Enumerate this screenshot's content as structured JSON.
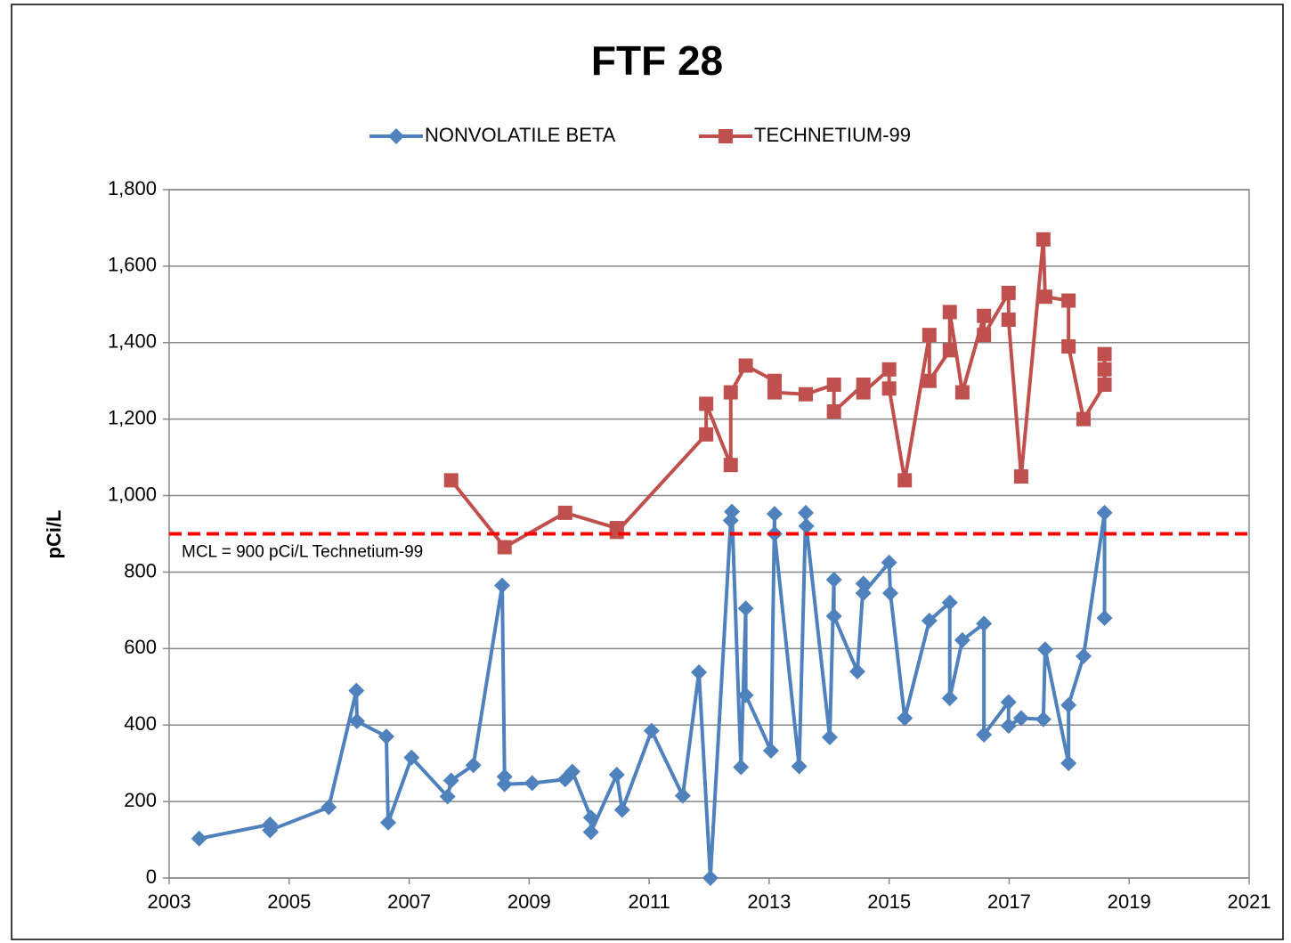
{
  "chart_data": {
    "type": "line",
    "title": "FTF 28",
    "ylabel": "pCi/L",
    "xlim": [
      2003,
      2021
    ],
    "xticks": [
      2003,
      2005,
      2007,
      2009,
      2011,
      2013,
      2015,
      2017,
      2019,
      2021
    ],
    "ylim": [
      0,
      1800
    ],
    "yticks": [
      0,
      200,
      400,
      600,
      800,
      {
        "value": 1000,
        "label": "1,000"
      },
      {
        "value": 1200,
        "label": "1,200"
      },
      {
        "value": 1400,
        "label": "1,400"
      },
      {
        "value": 1600,
        "label": "1,600"
      },
      {
        "value": 1800,
        "label": "1,800"
      }
    ],
    "grid": true,
    "legend": "top",
    "reference_line": {
      "value": 900,
      "label": "MCL = 900 pCi/L Technetium-99",
      "color": "#ff0000"
    },
    "series": [
      {
        "name": "NONVOLATILE BETA",
        "color": "#4f81bd",
        "marker": "diamond",
        "x": [
          2003.5,
          2004.68,
          2004.68,
          2005.66,
          2006.12,
          2006.13,
          2006.62,
          2006.65,
          2007.04,
          2007.64,
          2007.7,
          2008.07,
          2008.55,
          2008.59,
          2008.59,
          2009.05,
          2009.6,
          2009.72,
          2010.03,
          2010.03,
          2010.46,
          2010.55,
          2011.04,
          2011.56,
          2011.83,
          2012.02,
          2012.36,
          2012.38,
          2012.53,
          2012.61,
          2012.61,
          2013.03,
          2013.09,
          2013.09,
          2013.5,
          2013.61,
          2013.62,
          2014.01,
          2014.08,
          2014.08,
          2014.47,
          2014.57,
          2014.57,
          2015.0,
          2015.02,
          2015.26,
          2015.67,
          2016.01,
          2016.01,
          2016.22,
          2016.58,
          2016.58,
          2016.99,
          2016.99,
          2017.2,
          2017.57,
          2017.6,
          2017.99,
          2017.99,
          2018.24,
          2018.59,
          2018.59
        ],
        "values": [
          103,
          140,
          125,
          185,
          490,
          410,
          370,
          145,
          315,
          213,
          255,
          295,
          765,
          265,
          245,
          248,
          258,
          278,
          158,
          120,
          270,
          178,
          385,
          215,
          538,
          0,
          935,
          958,
          290,
          705,
          478,
          333,
          952,
          900,
          292,
          955,
          920,
          368,
          780,
          685,
          540,
          770,
          745,
          825,
          745,
          418,
          673,
          720,
          470,
          622,
          665,
          375,
          460,
          398,
          418,
          415,
          598,
          300,
          452,
          580,
          955,
          680
        ]
      },
      {
        "name": "TECHNETIUM-99",
        "color": "#c0504d",
        "marker": "square",
        "x": [
          2007.7,
          2008.59,
          2009.6,
          2010.46,
          2010.46,
          2011.95,
          2011.95,
          2012.36,
          2012.36,
          2012.61,
          2013.09,
          2013.09,
          2013.61,
          2014.08,
          2014.08,
          2014.57,
          2014.57,
          2015.0,
          2015.0,
          2015.26,
          2015.67,
          2015.67,
          2016.01,
          2016.01,
          2016.22,
          2016.58,
          2016.58,
          2016.99,
          2016.99,
          2017.2,
          2017.57,
          2017.6,
          2017.99,
          2017.99,
          2018.24,
          2018.59,
          2018.59,
          2018.59
        ],
        "values": [
          1040,
          865,
          955,
          915,
          905,
          1160,
          1240,
          1080,
          1270,
          1340,
          1300,
          1270,
          1265,
          1290,
          1220,
          1290,
          1270,
          1330,
          1280,
          1040,
          1420,
          1300,
          1380,
          1480,
          1270,
          1470,
          1420,
          1530,
          1460,
          1050,
          1670,
          1520,
          1510,
          1390,
          1200,
          1290,
          1370,
          1330
        ]
      }
    ]
  }
}
